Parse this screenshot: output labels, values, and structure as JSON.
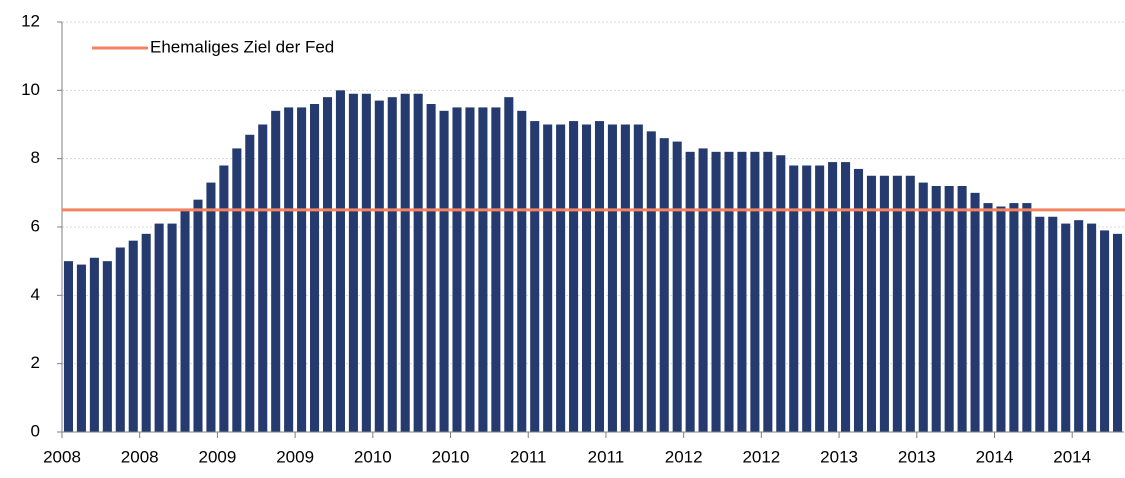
{
  "chart_data": {
    "type": "bar",
    "categories": [
      "2008",
      null,
      null,
      null,
      null,
      null,
      "2008",
      null,
      null,
      null,
      null,
      null,
      "2009",
      null,
      null,
      null,
      null,
      null,
      "2009",
      null,
      null,
      null,
      null,
      null,
      "2010",
      null,
      null,
      null,
      null,
      null,
      "2010",
      null,
      null,
      null,
      null,
      null,
      "2011",
      null,
      null,
      null,
      null,
      null,
      "2011",
      null,
      null,
      null,
      null,
      null,
      "2012",
      null,
      null,
      null,
      null,
      null,
      "2012",
      null,
      null,
      null,
      null,
      null,
      "2013",
      null,
      null,
      null,
      null,
      null,
      "2013",
      null,
      null,
      null,
      null,
      null,
      "2014",
      null,
      null,
      null,
      null,
      null,
      "2014",
      null,
      null,
      null
    ],
    "values": [
      5.0,
      4.9,
      5.1,
      5.0,
      5.4,
      5.6,
      5.8,
      6.1,
      6.1,
      6.5,
      6.8,
      7.3,
      7.8,
      8.3,
      8.7,
      9.0,
      9.4,
      9.5,
      9.5,
      9.6,
      9.8,
      10.0,
      9.9,
      9.9,
      9.7,
      9.8,
      9.9,
      9.9,
      9.6,
      9.4,
      9.5,
      9.5,
      9.5,
      9.5,
      9.8,
      9.4,
      9.1,
      9.0,
      9.0,
      9.1,
      9.0,
      9.1,
      9.0,
      9.0,
      9.0,
      8.8,
      8.6,
      8.5,
      8.2,
      8.3,
      8.2,
      8.2,
      8.2,
      8.2,
      8.2,
      8.1,
      7.8,
      7.8,
      7.8,
      7.9,
      7.9,
      7.7,
      7.5,
      7.5,
      7.5,
      7.5,
      7.3,
      7.2,
      7.2,
      7.2,
      7.0,
      6.7,
      6.6,
      6.7,
      6.7,
      6.3,
      6.3,
      6.1,
      6.2,
      6.1,
      5.9,
      5.8
    ],
    "color": "#253a6e",
    "ylim": [
      0,
      12
    ],
    "yticks": [
      0,
      2,
      4,
      6,
      8,
      10,
      12
    ],
    "grid": true,
    "reference_lines": [
      {
        "name": "Ehemaliges Ziel der Fed",
        "value": 6.5,
        "color": "#f4845f"
      }
    ],
    "legend": "top-left"
  }
}
